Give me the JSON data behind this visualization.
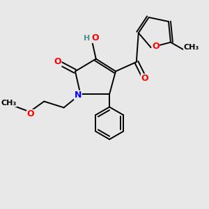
{
  "bg_color": "#e8e8e8",
  "atom_colors": {
    "C": "#000000",
    "O": "#ff0000",
    "N": "#0000ff",
    "H": "#4a9090"
  },
  "lw": 1.4,
  "fs": 9.0,
  "fs_small": 8.0
}
